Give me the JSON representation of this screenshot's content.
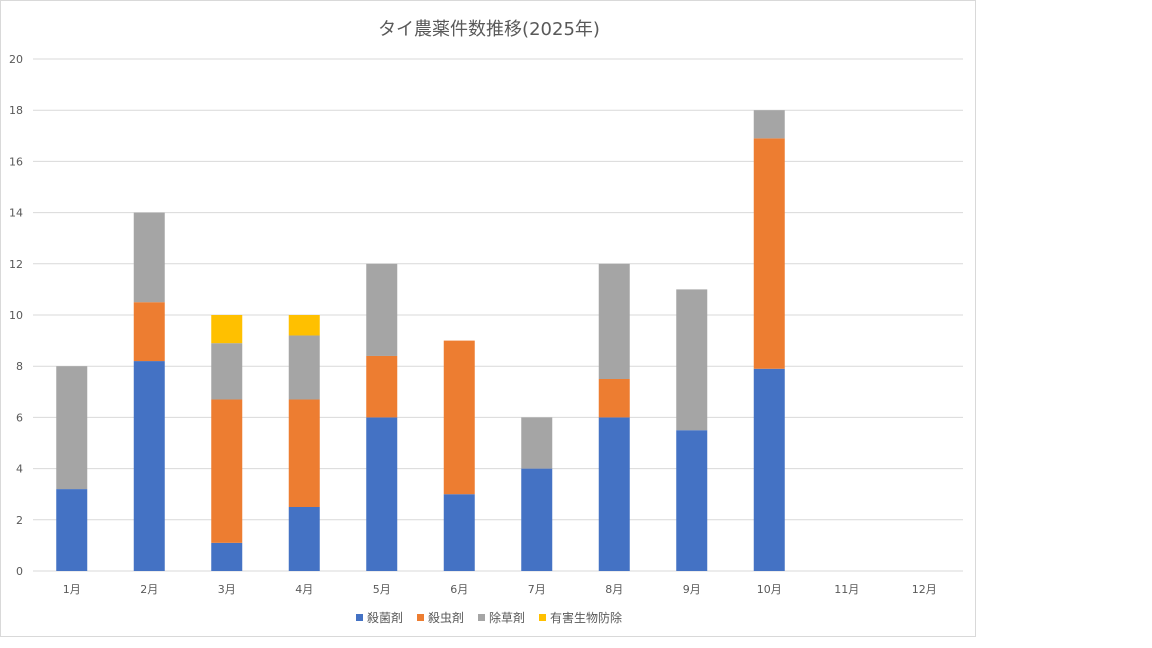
{
  "chart_data": {
    "type": "bar",
    "stacked": true,
    "title": "タイ農薬件数推移(2025年)",
    "xlabel": "",
    "ylabel": "",
    "ylim": [
      0,
      20
    ],
    "yticks": [
      0,
      2,
      4,
      6,
      8,
      10,
      12,
      14,
      16,
      18,
      20
    ],
    "grid": true,
    "legend_position": "bottom",
    "categories": [
      "1月",
      "2月",
      "3月",
      "4月",
      "5月",
      "6月",
      "7月",
      "8月",
      "9月",
      "10月",
      "11月",
      "12月"
    ],
    "series": [
      {
        "name": "殺菌剤",
        "color": "#4472C4",
        "values": [
          3.2,
          8.2,
          1.1,
          2.5,
          6,
          3,
          4,
          6,
          5.5,
          7.9,
          0,
          0
        ]
      },
      {
        "name": "殺虫剤",
        "color": "#ED7D31",
        "values": [
          0,
          2.3,
          5.6,
          4.2,
          2.4,
          6,
          0,
          1.5,
          0,
          9.0,
          0,
          0
        ]
      },
      {
        "name": "除草剤",
        "color": "#A5A5A5",
        "values": [
          4.8,
          3.5,
          2.2,
          2.5,
          3.6,
          0,
          2,
          4.5,
          5.5,
          1.1,
          0,
          0
        ]
      },
      {
        "name": "有害生物防除",
        "color": "#FFC000",
        "values": [
          0,
          0,
          1.1,
          0.8,
          0,
          0,
          0,
          0,
          0,
          0,
          0,
          0
        ]
      }
    ]
  }
}
